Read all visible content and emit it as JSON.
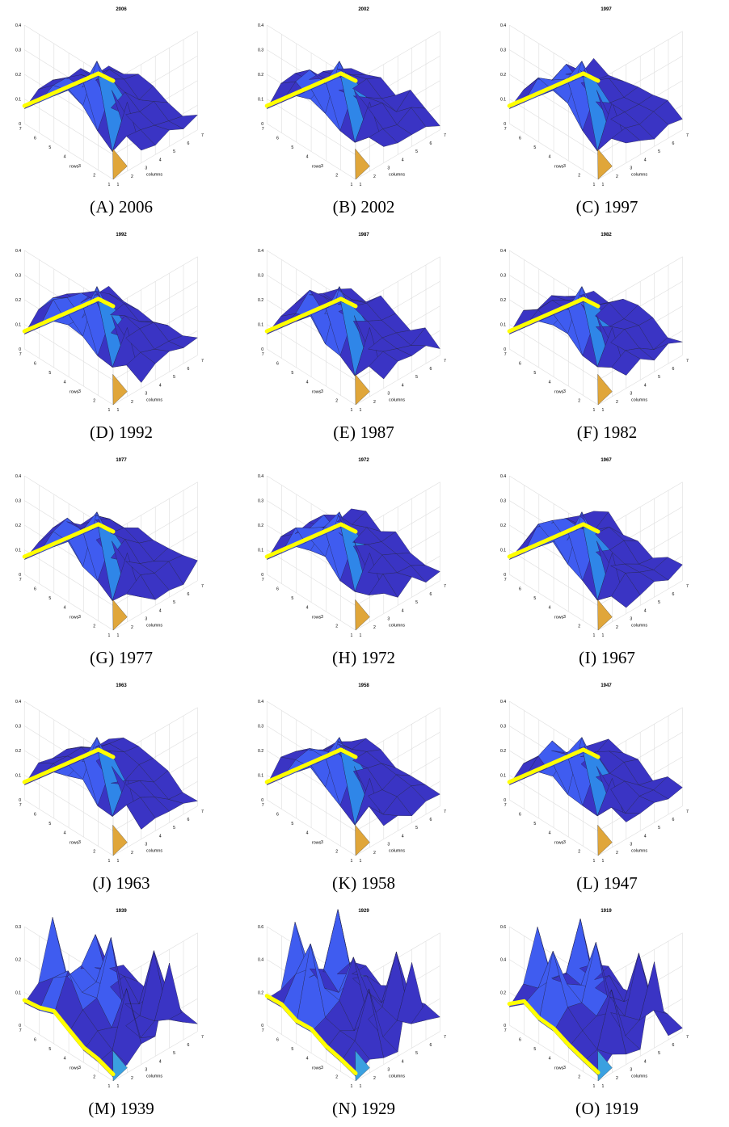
{
  "figure": {
    "rows_label": "rows",
    "columns_label": "columns",
    "row_ticks": [
      "1",
      "2",
      "3",
      "4",
      "5",
      "6",
      "7"
    ],
    "col_ticks": [
      "1",
      "2",
      "3",
      "4",
      "5",
      "6",
      "7"
    ]
  },
  "chart_data": [
    {
      "type": "surface",
      "title": "2006",
      "caption_letter": "(A)",
      "caption_year": "2006",
      "z_ticks": [
        "0",
        "0.1",
        "0.2",
        "0.3",
        "0.4"
      ],
      "zlim": [
        0,
        0.4
      ],
      "xlabel": "columns",
      "ylabel": "rows",
      "highlight_color": "#ffff00"
    },
    {
      "type": "surface",
      "title": "2002",
      "caption_letter": "(B)",
      "caption_year": "2002",
      "z_ticks": [
        "0",
        "0.1",
        "0.2",
        "0.3",
        "0.4"
      ],
      "zlim": [
        0,
        0.4
      ],
      "xlabel": "columns",
      "ylabel": "rows",
      "highlight_color": "#ffff00"
    },
    {
      "type": "surface",
      "title": "1997",
      "caption_letter": "(C)",
      "caption_year": "1997",
      "z_ticks": [
        "0",
        "0.1",
        "0.2",
        "0.3",
        "0.4"
      ],
      "zlim": [
        0,
        0.4
      ],
      "xlabel": "columns",
      "ylabel": "rows",
      "highlight_color": "#ffff00"
    },
    {
      "type": "surface",
      "title": "1992",
      "caption_letter": "(D)",
      "caption_year": "1992",
      "z_ticks": [
        "0",
        "0.1",
        "0.2",
        "0.3",
        "0.4"
      ],
      "zlim": [
        0,
        0.4
      ],
      "xlabel": "columns",
      "ylabel": "rows",
      "highlight_color": "#ffff00"
    },
    {
      "type": "surface",
      "title": "1987",
      "caption_letter": "(E)",
      "caption_year": "1987",
      "z_ticks": [
        "0",
        "0.1",
        "0.2",
        "0.3",
        "0.4"
      ],
      "zlim": [
        0,
        0.4
      ],
      "xlabel": "columns",
      "ylabel": "rows",
      "highlight_color": "#ffff00"
    },
    {
      "type": "surface",
      "title": "1982",
      "caption_letter": "(F)",
      "caption_year": "1982",
      "z_ticks": [
        "0",
        "0.1",
        "0.2",
        "0.3",
        "0.4"
      ],
      "zlim": [
        0,
        0.4
      ],
      "xlabel": "columns",
      "ylabel": "rows",
      "highlight_color": "#ffff00"
    },
    {
      "type": "surface",
      "title": "1977",
      "caption_letter": "(G)",
      "caption_year": "1977",
      "z_ticks": [
        "0",
        "0.1",
        "0.2",
        "0.3",
        "0.4"
      ],
      "zlim": [
        0,
        0.4
      ],
      "xlabel": "columns",
      "ylabel": "rows",
      "highlight_color": "#ffff00"
    },
    {
      "type": "surface",
      "title": "1972",
      "caption_letter": "(H)",
      "caption_year": "1972",
      "z_ticks": [
        "0",
        "0.1",
        "0.2",
        "0.3",
        "0.4"
      ],
      "zlim": [
        0,
        0.4
      ],
      "xlabel": "columns",
      "ylabel": "rows",
      "highlight_color": "#ffff00"
    },
    {
      "type": "surface",
      "title": "1967",
      "caption_letter": "(I)",
      "caption_year": "1967",
      "z_ticks": [
        "0",
        "0.1",
        "0.2",
        "0.3",
        "0.4"
      ],
      "zlim": [
        0,
        0.4
      ],
      "xlabel": "columns",
      "ylabel": "rows",
      "highlight_color": "#ffff00"
    },
    {
      "type": "surface",
      "title": "1963",
      "caption_letter": "(J)",
      "caption_year": "1963",
      "z_ticks": [
        "0",
        "0.1",
        "0.2",
        "0.3",
        "0.4"
      ],
      "zlim": [
        0,
        0.4
      ],
      "xlabel": "columns",
      "ylabel": "rows",
      "highlight_color": "#ffff00"
    },
    {
      "type": "surface",
      "title": "1958",
      "caption_letter": "(K)",
      "caption_year": "1958",
      "z_ticks": [
        "0",
        "0.1",
        "0.2",
        "0.3",
        "0.4"
      ],
      "zlim": [
        0,
        0.4
      ],
      "xlabel": "columns",
      "ylabel": "rows",
      "highlight_color": "#ffff00"
    },
    {
      "type": "surface",
      "title": "1947",
      "caption_letter": "(L)",
      "caption_year": "1947",
      "z_ticks": [
        "0",
        "0.1",
        "0.2",
        "0.3",
        "0.4"
      ],
      "zlim": [
        0,
        0.4
      ],
      "xlabel": "columns",
      "ylabel": "rows",
      "highlight_color": "#ffff00"
    },
    {
      "type": "surface",
      "title": "1939",
      "caption_letter": "(M)",
      "caption_year": "1939",
      "z_ticks": [
        "0",
        "0.1",
        "0.2",
        "0.3"
      ],
      "zlim": [
        0,
        0.3
      ],
      "xlabel": "columns",
      "ylabel": "rows",
      "highlight_color": "#ffff00"
    },
    {
      "type": "surface",
      "title": "1929",
      "caption_letter": "(N)",
      "caption_year": "1929",
      "z_ticks": [
        "0",
        "0.2",
        "0.4",
        "0.6"
      ],
      "zlim": [
        0,
        0.6
      ],
      "xlabel": "columns",
      "ylabel": "rows",
      "highlight_color": "#ffff00"
    },
    {
      "type": "surface",
      "title": "1919",
      "caption_letter": "(O)",
      "caption_year": "1919",
      "z_ticks": [
        "0",
        "0.2",
        "0.4",
        "0.6"
      ],
      "zlim": [
        0,
        0.6
      ],
      "xlabel": "columns",
      "ylabel": "rows",
      "highlight_color": "#ffff00"
    }
  ]
}
